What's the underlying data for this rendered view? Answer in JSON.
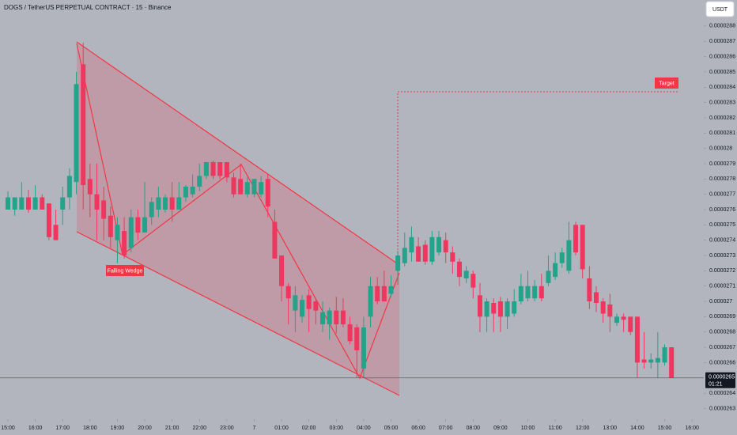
{
  "chart_data": {
    "type": "candlestick",
    "title": "DOGS / TetherUS PERPETUAL CONTRACT · 15 · Binance",
    "currency": "USDT",
    "annotations": [
      "Falling Wedge",
      "Target"
    ],
    "last_price": 2.65e-05,
    "countdown": "01:21",
    "up_color": "#22a38a",
    "down_color": "#f0365f",
    "grid": false,
    "xlim": [
      -0.29,
      25.43
    ],
    "ylim": [
      2.623e-05,
      2.897e-05
    ],
    "xticks": [
      {
        "value": 0,
        "label": "15:00"
      },
      {
        "value": 1,
        "label": "16:00"
      },
      {
        "value": 2,
        "label": "17:00"
      },
      {
        "value": 3,
        "label": "18:00"
      },
      {
        "value": 4,
        "label": "19:00"
      },
      {
        "value": 5,
        "label": "20:00"
      },
      {
        "value": 6,
        "label": "21:00"
      },
      {
        "value": 7,
        "label": "22:00"
      },
      {
        "value": 8,
        "label": "23:00"
      },
      {
        "value": 9,
        "label": "7"
      },
      {
        "value": 10,
        "label": "01:00"
      },
      {
        "value": 11,
        "label": "02:00"
      },
      {
        "value": 12,
        "label": "03:00"
      },
      {
        "value": 13,
        "label": "04:00"
      },
      {
        "value": 14,
        "label": "05:00"
      },
      {
        "value": 15,
        "label": "06:00"
      },
      {
        "value": 16,
        "label": "07:00"
      },
      {
        "value": 17,
        "label": "08:00"
      },
      {
        "value": 18,
        "label": "09:00"
      },
      {
        "value": 19,
        "label": "10:00"
      },
      {
        "value": 20,
        "label": "11:00"
      },
      {
        "value": 21,
        "label": "12:00"
      },
      {
        "value": 22,
        "label": "13:00"
      },
      {
        "value": 23,
        "label": "14:00"
      },
      {
        "value": 24,
        "label": "15:00"
      },
      {
        "value": 25,
        "label": "16:00"
      }
    ],
    "yticks": [
      2.63e-05,
      2.64e-05,
      2.66e-05,
      2.67e-05,
      2.68e-05,
      2.69e-05,
      2.7e-05,
      2.71e-05,
      2.72e-05,
      2.73e-05,
      2.74e-05,
      2.75e-05,
      2.76e-05,
      2.77e-05,
      2.78e-05,
      2.79e-05,
      2.8e-05,
      2.81e-05,
      2.82e-05,
      2.83e-05,
      2.84e-05,
      2.85e-05,
      2.86e-05,
      2.87e-05,
      2.88e-05
    ],
    "x": [
      0,
      0.25,
      0.5,
      0.75,
      1,
      1.25,
      1.5,
      1.75,
      2,
      2.25,
      2.5,
      2.75,
      3,
      3.25,
      3.5,
      3.75,
      4,
      4.25,
      4.5,
      4.75,
      5,
      5.25,
      5.5,
      5.75,
      6,
      6.25,
      6.5,
      6.75,
      7,
      7.25,
      7.5,
      7.75,
      8,
      8.25,
      8.5,
      8.75,
      9,
      9.25,
      9.5,
      9.75,
      10,
      10.25,
      10.5,
      10.75,
      11,
      11.25,
      11.5,
      11.75,
      12,
      12.25,
      12.5,
      12.75,
      13,
      13.25,
      13.5,
      13.75,
      14,
      14.25,
      14.5,
      14.75,
      15,
      15.25,
      15.5,
      15.75,
      16,
      16.25,
      16.5,
      16.75,
      17,
      17.25,
      17.5,
      17.75,
      18,
      18.25,
      18.5,
      18.75,
      19,
      19.25,
      19.5,
      19.75,
      20,
      20.25,
      20.5,
      20.75,
      21,
      21.25,
      21.5,
      21.75,
      22,
      22.25,
      22.5,
      22.75,
      23,
      23.25,
      23.5,
      23.75,
      24,
      24.25
    ],
    "open": [
      2.76e-05,
      2.76e-05,
      2.76e-05,
      2.768e-05,
      2.76e-05,
      2.768e-05,
      2.764e-05,
      2.75e-05,
      2.76e-05,
      2.768e-05,
      2.778e-05,
      2.855e-05,
      2.78e-05,
      2.77e-05,
      2.766e-05,
      2.756e-05,
      2.74e-05,
      2.746e-05,
      2.735e-05,
      2.755e-05,
      2.745e-05,
      2.755e-05,
      2.76e-05,
      2.76e-05,
      2.768e-05,
      2.76e-05,
      2.768e-05,
      2.77e-05,
      2.775e-05,
      2.782e-05,
      2.791e-05,
      2.791e-05,
      2.791e-05,
      2.781e-05,
      2.78e-05,
      2.77e-05,
      2.77e-05,
      2.77e-05,
      2.78e-05,
      2.752e-05,
      2.73e-05,
      2.71e-05,
      2.694e-05,
      2.69e-05,
      2.704e-05,
      2.7e-05,
      2.685e-05,
      2.685e-05,
      2.694e-05,
      2.694e-05,
      2.685e-05,
      2.683e-05,
      2.656e-05,
      2.69e-05,
      2.71e-05,
      2.71e-05,
      2.705e-05,
      2.72e-05,
      2.725e-05,
      2.732e-05,
      2.736e-05,
      2.737e-05,
      2.726e-05,
      2.732e-05,
      2.74e-05,
      2.732e-05,
      2.726e-05,
      2.715e-05,
      2.718e-05,
      2.704e-05,
      2.69e-05,
      2.699e-05,
      2.7e-05,
      2.69e-05,
      2.692e-05,
      2.7e-05,
      2.702e-05,
      2.702e-05,
      2.71e-05,
      2.712e-05,
      2.716e-05,
      2.725e-05,
      2.72e-05,
      2.75e-05,
      2.75e-05,
      2.715e-05,
      2.706e-05,
      2.7e-05,
      2.698e-05,
      2.686e-05,
      2.69e-05,
      2.69e-05,
      2.69e-05,
      2.662e-05,
      2.66e-05,
      2.66e-05,
      2.66e-05,
      2.67e-05
    ],
    "high": [
      2.772e-05,
      2.768e-05,
      2.778e-05,
      2.773e-05,
      2.776e-05,
      2.77e-05,
      2.764e-05,
      2.76e-05,
      2.775e-05,
      2.787e-05,
      2.85e-05,
      2.869e-05,
      2.79e-05,
      2.79e-05,
      2.775e-05,
      2.762e-05,
      2.755e-05,
      2.755e-05,
      2.76e-05,
      2.76e-05,
      2.778e-05,
      2.768e-05,
      2.775e-05,
      2.77e-05,
      2.778e-05,
      2.778e-05,
      2.776e-05,
      2.783e-05,
      2.79e-05,
      2.791e-05,
      2.792e-05,
      2.791e-05,
      2.791e-05,
      2.784e-05,
      2.79e-05,
      2.781e-05,
      2.78e-05,
      2.782e-05,
      2.783e-05,
      2.76e-05,
      2.73e-05,
      2.712e-05,
      2.71e-05,
      2.704e-05,
      2.708e-05,
      2.702e-05,
      2.7e-05,
      2.696e-05,
      2.703e-05,
      2.702e-05,
      2.69e-05,
      2.685e-05,
      2.69e-05,
      2.716e-05,
      2.716e-05,
      2.72e-05,
      2.717e-05,
      2.733e-05,
      2.745e-05,
      2.749e-05,
      2.742e-05,
      2.74e-05,
      2.746e-05,
      2.746e-05,
      2.745e-05,
      2.736e-05,
      2.728e-05,
      2.723e-05,
      2.72e-05,
      2.712e-05,
      2.702e-05,
      2.702e-05,
      2.703e-05,
      2.702e-05,
      2.708e-05,
      2.718e-05,
      2.72e-05,
      2.714e-05,
      2.718e-05,
      2.73e-05,
      2.732e-05,
      2.735e-05,
      2.752e-05,
      2.752e-05,
      2.75e-05,
      2.723e-05,
      2.71e-05,
      2.702e-05,
      2.705e-05,
      2.692e-05,
      2.692e-05,
      2.69e-05,
      2.69e-05,
      2.68e-05,
      2.666e-05,
      2.68e-05,
      2.672e-05,
      2.67e-05
    ],
    "low": [
      2.76e-05,
      2.756e-05,
      2.76e-05,
      2.758e-05,
      2.76e-05,
      2.76e-05,
      2.74e-05,
      2.74e-05,
      2.75e-05,
      2.76e-05,
      2.77e-05,
      2.76e-05,
      2.755e-05,
      2.74e-05,
      2.74e-05,
      2.735e-05,
      2.725e-05,
      2.728e-05,
      2.732e-05,
      2.74e-05,
      2.745e-05,
      2.75e-05,
      2.755e-05,
      2.758e-05,
      2.752e-05,
      2.76e-05,
      2.765e-05,
      2.768e-05,
      2.772e-05,
      2.78e-05,
      2.78e-05,
      2.78e-05,
      2.778e-05,
      2.768e-05,
      2.77e-05,
      2.768e-05,
      2.768e-05,
      2.768e-05,
      2.755e-05,
      2.728e-05,
      2.7e-05,
      2.685e-05,
      2.68e-05,
      2.686e-05,
      2.68e-05,
      2.685e-05,
      2.68e-05,
      2.675e-05,
      2.679e-05,
      2.683e-05,
      2.672e-05,
      2.65e-05,
      2.65e-05,
      2.683e-05,
      2.698e-05,
      2.7e-05,
      2.703e-05,
      2.712e-05,
      2.723e-05,
      2.726e-05,
      2.726e-05,
      2.724e-05,
      2.724e-05,
      2.73e-05,
      2.725e-05,
      2.718e-05,
      2.71e-05,
      2.712e-05,
      2.702e-05,
      2.68e-05,
      2.68e-05,
      2.68e-05,
      2.68e-05,
      2.682e-05,
      2.69e-05,
      2.698e-05,
      2.7e-05,
      2.7e-05,
      2.7e-05,
      2.71e-05,
      2.714e-05,
      2.722e-05,
      2.718e-05,
      2.73e-05,
      2.715e-05,
      2.695e-05,
      2.693e-05,
      2.686e-05,
      2.68e-05,
      2.684e-05,
      2.68e-05,
      2.678e-05,
      2.65e-05,
      2.656e-05,
      2.656e-05,
      2.65e-05,
      2.658e-05,
      2.65e-05
    ],
    "close": [
      2.768e-05,
      2.768e-05,
      2.768e-05,
      2.76e-05,
      2.768e-05,
      2.76e-05,
      2.742e-05,
      2.74e-05,
      2.768e-05,
      2.782e-05,
      2.842e-05,
      2.776e-05,
      2.77e-05,
      2.76e-05,
      2.754e-05,
      2.742e-05,
      2.75e-05,
      2.73e-05,
      2.755e-05,
      2.745e-05,
      2.755e-05,
      2.765e-05,
      2.768e-05,
      2.768e-05,
      2.76e-05,
      2.768e-05,
      2.775e-05,
      2.775e-05,
      2.782e-05,
      2.791e-05,
      2.782e-05,
      2.782e-05,
      2.781e-05,
      2.77e-05,
      2.77e-05,
      2.778e-05,
      2.78e-05,
      2.778e-05,
      2.762e-05,
      2.728e-05,
      2.71e-05,
      2.702e-05,
      2.704e-05,
      2.701e-05,
      2.695e-05,
      2.694e-05,
      2.693e-05,
      2.694e-05,
      2.685e-05,
      2.685e-05,
      2.674e-05,
      2.668e-05,
      2.683e-05,
      2.71e-05,
      2.7e-05,
      2.7e-05,
      2.71e-05,
      2.73e-05,
      2.735e-05,
      2.742e-05,
      2.726e-05,
      2.726e-05,
      2.742e-05,
      2.742e-05,
      2.732e-05,
      2.726e-05,
      2.716e-05,
      2.72e-05,
      2.709e-05,
      2.69e-05,
      2.7e-05,
      2.692e-05,
      2.69e-05,
      2.7e-05,
      2.7e-05,
      2.71e-05,
      2.71e-05,
      2.71e-05,
      2.702e-05,
      2.72e-05,
      2.725e-05,
      2.732e-05,
      2.74e-05,
      2.732e-05,
      2.721e-05,
      2.7e-05,
      2.699e-05,
      2.692e-05,
      2.69e-05,
      2.69e-05,
      2.688e-05,
      2.68e-05,
      2.66e-05,
      2.66e-05,
      2.662e-05,
      2.663e-05,
      2.67e-05,
      2.65e-05
    ]
  }
}
